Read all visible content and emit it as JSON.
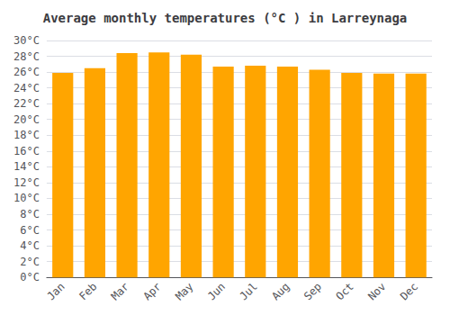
{
  "chart_data": {
    "type": "bar",
    "title": "Average monthly temperatures (°C ) in Larreynaga",
    "categories": [
      "Jan",
      "Feb",
      "Mar",
      "Apr",
      "May",
      "Jun",
      "Jul",
      "Aug",
      "Sep",
      "Oct",
      "Nov",
      "Dec"
    ],
    "values": [
      25.9,
      26.5,
      28.4,
      28.5,
      28.2,
      26.7,
      26.8,
      26.7,
      26.3,
      25.9,
      25.8,
      25.8
    ],
    "color": "#FFA500",
    "ylim": [
      0,
      30
    ],
    "yticks": [
      {
        "value": 0,
        "label": "0°C"
      },
      {
        "value": 2,
        "label": "2°C"
      },
      {
        "value": 4,
        "label": "4°C"
      },
      {
        "value": 6,
        "label": "6°C"
      },
      {
        "value": 8,
        "label": "8°C"
      },
      {
        "value": 10,
        "label": "10°C"
      },
      {
        "value": 12,
        "label": "12°C"
      },
      {
        "value": 14,
        "label": "14°C"
      },
      {
        "value": 16,
        "label": "16°C"
      },
      {
        "value": 18,
        "label": "18°C"
      },
      {
        "value": 20,
        "label": "20°C"
      },
      {
        "value": 22,
        "label": "22°C"
      },
      {
        "value": 24,
        "label": "24°C"
      },
      {
        "value": 26,
        "label": "26°C"
      },
      {
        "value": 28,
        "label": "28°C"
      },
      {
        "value": 30,
        "label": "30°C"
      }
    ],
    "grid": true
  }
}
